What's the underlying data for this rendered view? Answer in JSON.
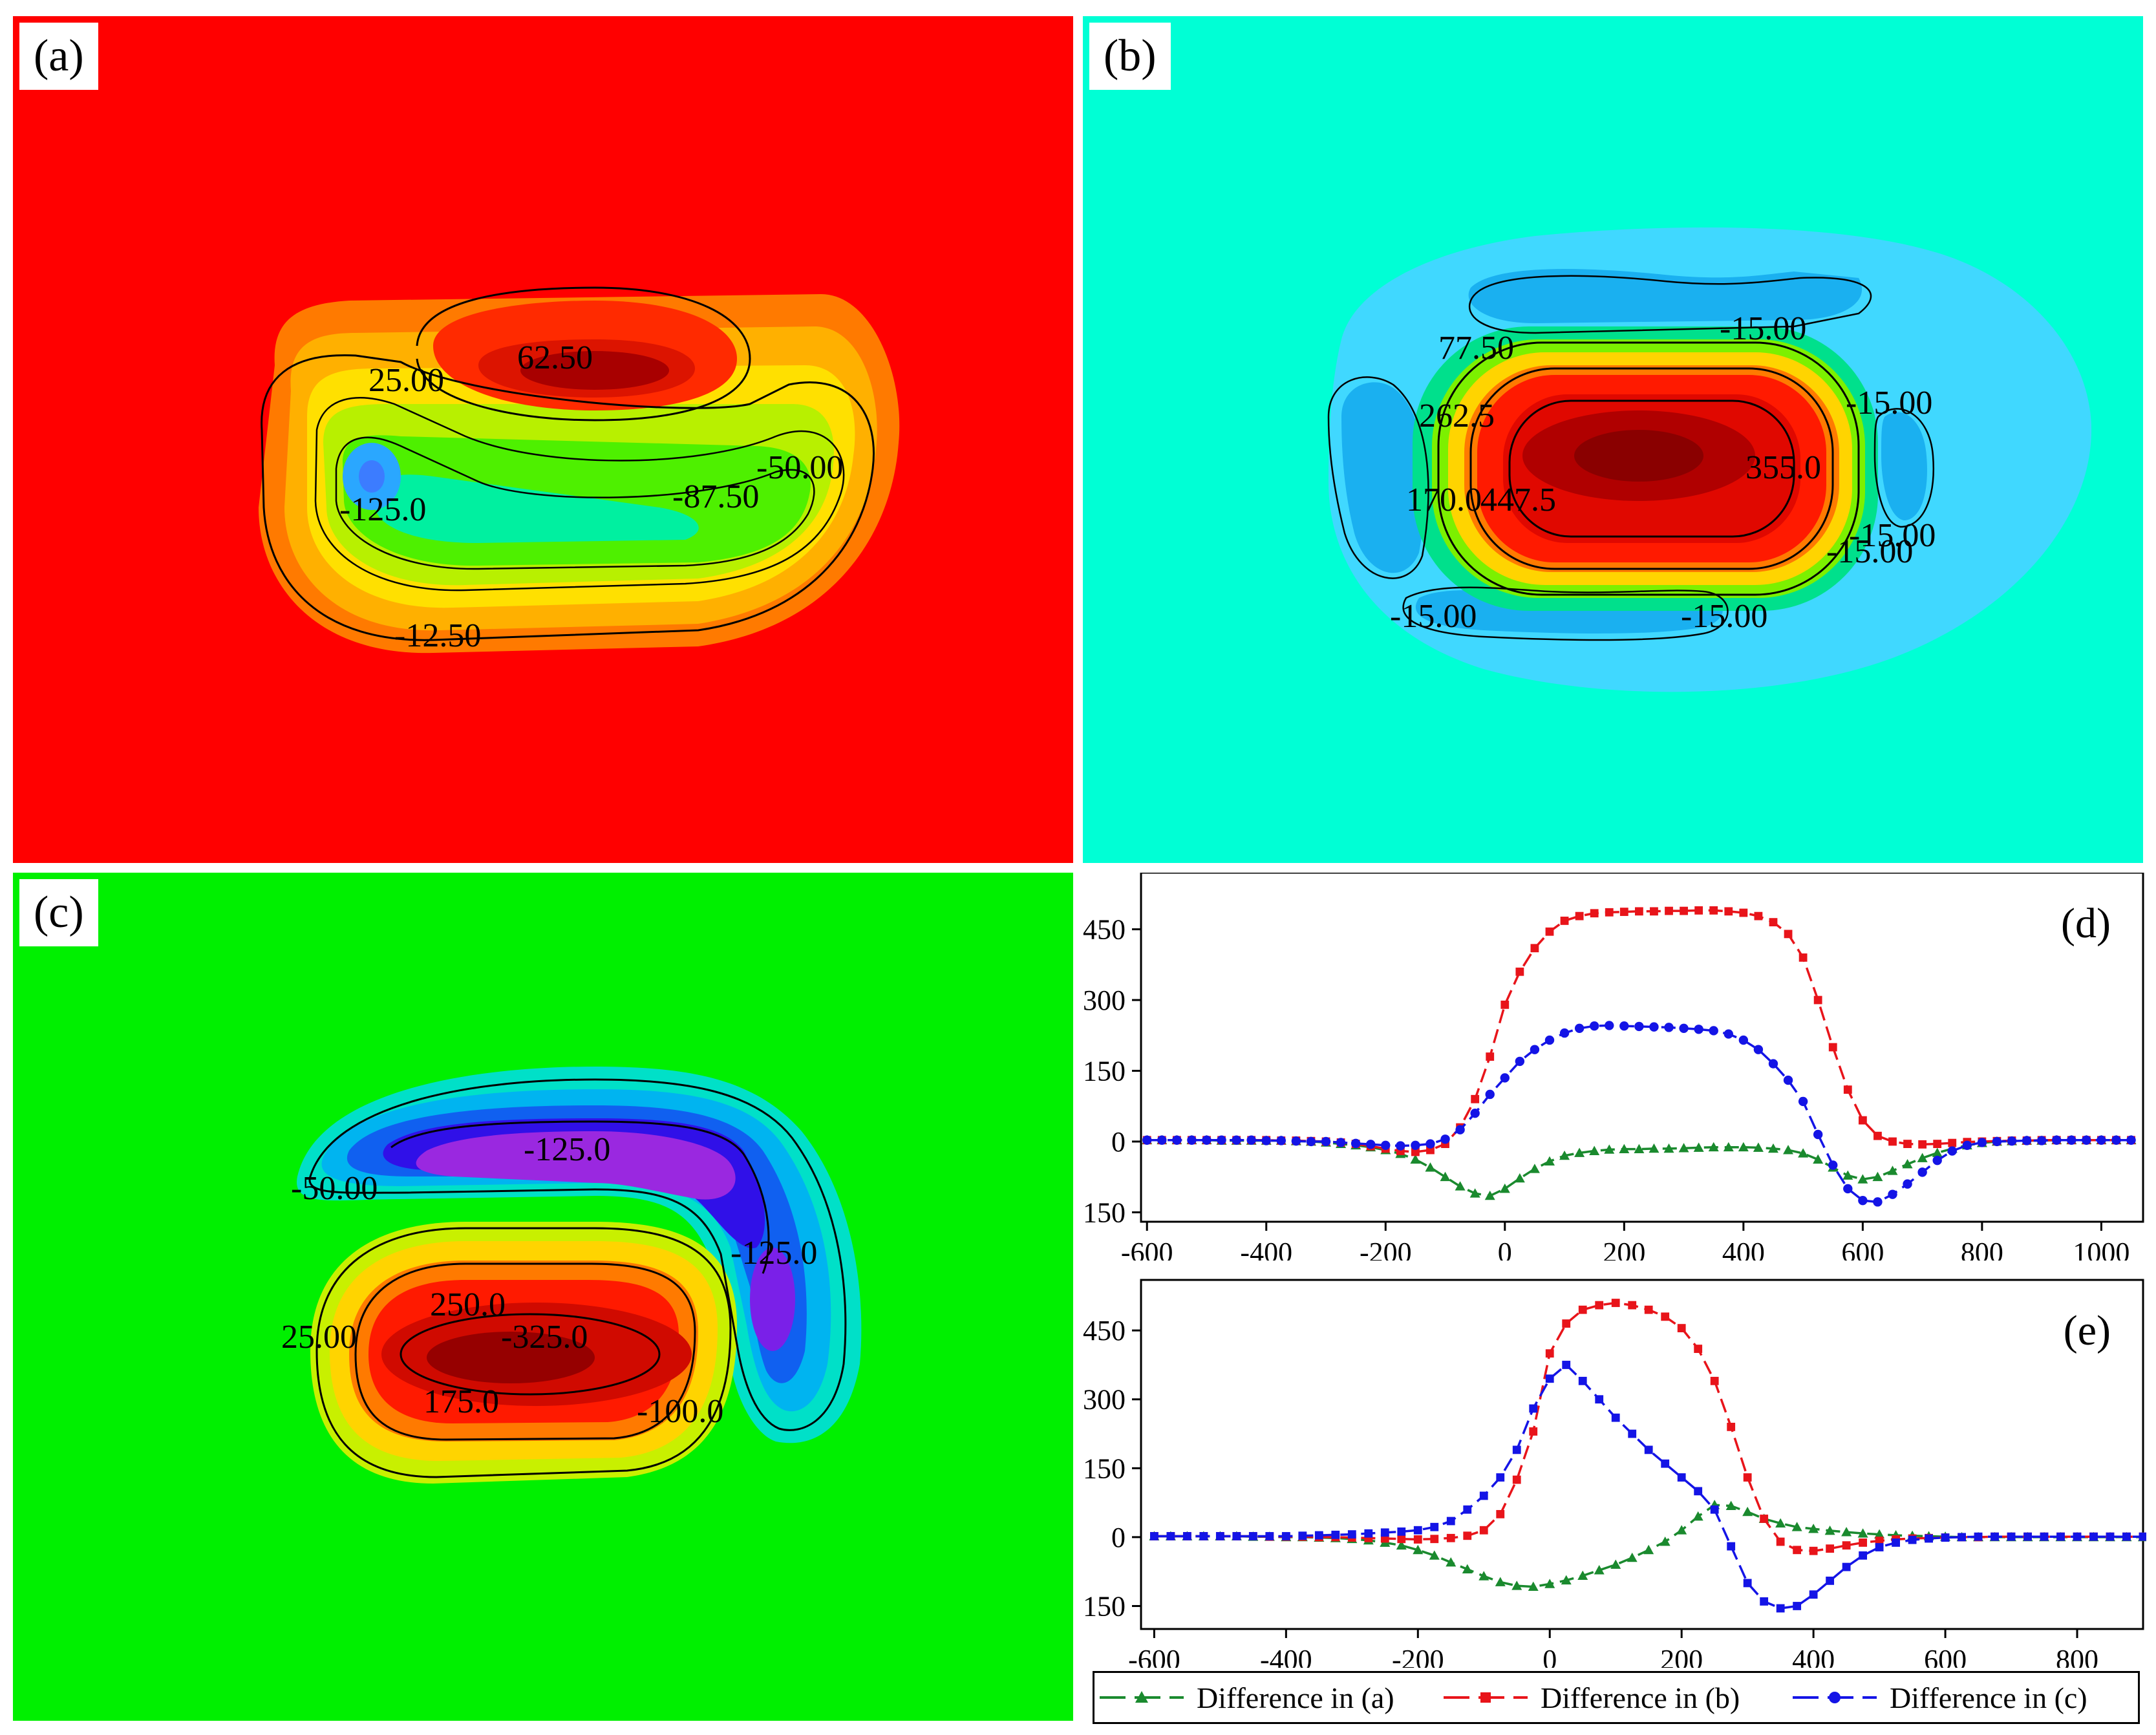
{
  "panels": {
    "a": {
      "label": "(a)",
      "background": "#ff0000",
      "contour_labels": [
        "62.50",
        "25.00",
        "-50.00",
        "-87.50",
        "-125.0",
        "-12.50"
      ]
    },
    "b": {
      "label": "(b)",
      "background": "#00ffd5",
      "contour_labels": [
        "-15.00",
        "77.50",
        "262.5",
        "-15.00",
        "355.0",
        "170.0",
        "447.5",
        "-15.00",
        "-15.00",
        "-15.00",
        "-15.00"
      ]
    },
    "c": {
      "label": "(c)",
      "background": "#00f000",
      "contour_labels": [
        "-125.0",
        "-50.00",
        "-125.0",
        "250.0",
        "25.00",
        "-325.0",
        "175.0",
        "-100.0"
      ]
    }
  },
  "chart_data": [
    {
      "type": "line",
      "panel_label": "(d)",
      "xlim": [
        -610,
        1070
      ],
      "ylim": [
        -170,
        570
      ],
      "xticks": [
        -600,
        -400,
        -200,
        0,
        200,
        400,
        600,
        800,
        1000
      ],
      "yticks": [
        -150,
        0,
        150,
        300,
        450
      ],
      "x": [
        -600,
        -575,
        -550,
        -525,
        -500,
        -475,
        -450,
        -425,
        -400,
        -375,
        -350,
        -325,
        -300,
        -275,
        -250,
        -225,
        -200,
        -175,
        -150,
        -125,
        -100,
        -75,
        -50,
        -25,
        0,
        25,
        50,
        75,
        100,
        125,
        150,
        175,
        200,
        225,
        250,
        275,
        300,
        325,
        350,
        375,
        400,
        425,
        450,
        475,
        500,
        525,
        550,
        575,
        600,
        625,
        650,
        675,
        700,
        725,
        750,
        775,
        800,
        825,
        850,
        875,
        900,
        925,
        950,
        975,
        1000,
        1025,
        1050
      ],
      "series": [
        {
          "name": "Difference in (a)",
          "color": "#1a8a2e",
          "marker": "triangle",
          "values": [
            3,
            3,
            3,
            3,
            3,
            2,
            2,
            2,
            2,
            2,
            1,
            0,
            -2,
            -5,
            -8,
            -12,
            -18,
            -26,
            -38,
            -55,
            -75,
            -95,
            -110,
            -115,
            -100,
            -78,
            -58,
            -42,
            -30,
            -24,
            -20,
            -17,
            -16,
            -16,
            -15,
            -15,
            -14,
            -13,
            -12,
            -12,
            -12,
            -13,
            -15,
            -18,
            -25,
            -38,
            -55,
            -72,
            -80,
            -75,
            -62,
            -48,
            -35,
            -24,
            -15,
            -8,
            -3,
            0,
            1,
            2,
            2,
            3,
            3,
            3,
            3,
            3,
            3
          ]
        },
        {
          "name": "Difference in (b)",
          "color": "#e8141a",
          "marker": "square",
          "values": [
            3,
            3,
            3,
            3,
            3,
            3,
            3,
            3,
            3,
            2,
            2,
            1,
            0,
            -2,
            -5,
            -10,
            -15,
            -20,
            -22,
            -18,
            -5,
            30,
            90,
            180,
            290,
            360,
            410,
            445,
            468,
            478,
            484,
            486,
            487,
            488,
            488,
            489,
            489,
            490,
            490,
            488,
            485,
            478,
            465,
            440,
            390,
            300,
            200,
            110,
            45,
            12,
            0,
            -5,
            -6,
            -5,
            -3,
            -1,
            0,
            1,
            2,
            2,
            3,
            3,
            3,
            3,
            3,
            3,
            3
          ]
        },
        {
          "name": "Difference in (c)",
          "color": "#1414e6",
          "marker": "circle",
          "values": [
            3,
            3,
            3,
            3,
            3,
            3,
            3,
            3,
            2,
            2,
            1,
            0,
            0,
            -2,
            -4,
            -6,
            -8,
            -9,
            -8,
            -5,
            5,
            25,
            60,
            100,
            135,
            170,
            195,
            215,
            230,
            240,
            245,
            246,
            245,
            244,
            243,
            242,
            240,
            238,
            235,
            228,
            215,
            195,
            165,
            130,
            85,
            15,
            -50,
            -100,
            -125,
            -128,
            -112,
            -90,
            -65,
            -40,
            -20,
            -8,
            -2,
            0,
            1,
            2,
            2,
            3,
            3,
            3,
            3,
            3,
            3
          ]
        }
      ]
    },
    {
      "type": "line",
      "panel_label": "(e)",
      "xlim": [
        -620,
        900
      ],
      "ylim": [
        -200,
        560
      ],
      "xticks": [
        -600,
        -400,
        -200,
        0,
        200,
        400,
        600,
        800
      ],
      "yticks": [
        -150,
        0,
        150,
        300,
        450
      ],
      "x": [
        -600,
        -575,
        -550,
        -525,
        -500,
        -475,
        -450,
        -425,
        -400,
        -375,
        -350,
        -325,
        -300,
        -275,
        -250,
        -225,
        -200,
        -175,
        -150,
        -125,
        -100,
        -75,
        -50,
        -25,
        0,
        25,
        50,
        75,
        100,
        125,
        150,
        175,
        200,
        225,
        250,
        275,
        300,
        325,
        350,
        375,
        400,
        425,
        450,
        475,
        500,
        525,
        550,
        575,
        600,
        625,
        650,
        675,
        700,
        725,
        750,
        775,
        800,
        825,
        850,
        875,
        900
      ],
      "series": [
        {
          "name": "Difference in (a)",
          "color": "#1a8a2e",
          "marker": "triangle",
          "values": [
            2,
            2,
            2,
            2,
            2,
            2,
            1,
            1,
            0,
            0,
            -1,
            -2,
            -4,
            -7,
            -12,
            -18,
            -28,
            -40,
            -55,
            -70,
            -85,
            -98,
            -106,
            -108,
            -102,
            -94,
            -84,
            -72,
            -60,
            -45,
            -28,
            -10,
            15,
            45,
            70,
            68,
            55,
            40,
            30,
            22,
            18,
            14,
            11,
            8,
            6,
            4,
            3,
            2,
            1,
            0,
            0,
            0,
            0,
            0,
            0,
            0,
            0,
            0,
            0,
            0,
            0
          ]
        },
        {
          "name": "Difference in (b)",
          "color": "#e8141a",
          "marker": "square",
          "values": [
            2,
            2,
            2,
            2,
            2,
            2,
            2,
            1,
            1,
            1,
            0,
            0,
            -1,
            -2,
            -3,
            -4,
            -5,
            -4,
            -2,
            3,
            15,
            50,
            125,
            230,
            400,
            465,
            495,
            505,
            510,
            505,
            495,
            480,
            455,
            410,
            340,
            240,
            130,
            40,
            -10,
            -28,
            -30,
            -25,
            -18,
            -12,
            -8,
            -5,
            -3,
            -2,
            -1,
            0,
            0,
            1,
            1,
            1,
            1,
            1,
            1,
            1,
            1,
            1,
            1
          ]
        },
        {
          "name": "Difference in (c)",
          "color": "#1414e6",
          "marker": "square",
          "values": [
            2,
            2,
            2,
            2,
            2,
            2,
            2,
            2,
            2,
            3,
            4,
            5,
            6,
            8,
            10,
            12,
            15,
            22,
            35,
            60,
            90,
            130,
            190,
            280,
            345,
            375,
            340,
            300,
            260,
            225,
            190,
            160,
            130,
            100,
            60,
            -20,
            -100,
            -140,
            -155,
            -150,
            -125,
            -95,
            -65,
            -40,
            -22,
            -12,
            -6,
            -3,
            -1,
            0,
            1,
            1,
            1,
            1,
            1,
            1,
            1,
            1,
            1,
            1,
            1
          ]
        }
      ]
    }
  ]
}
